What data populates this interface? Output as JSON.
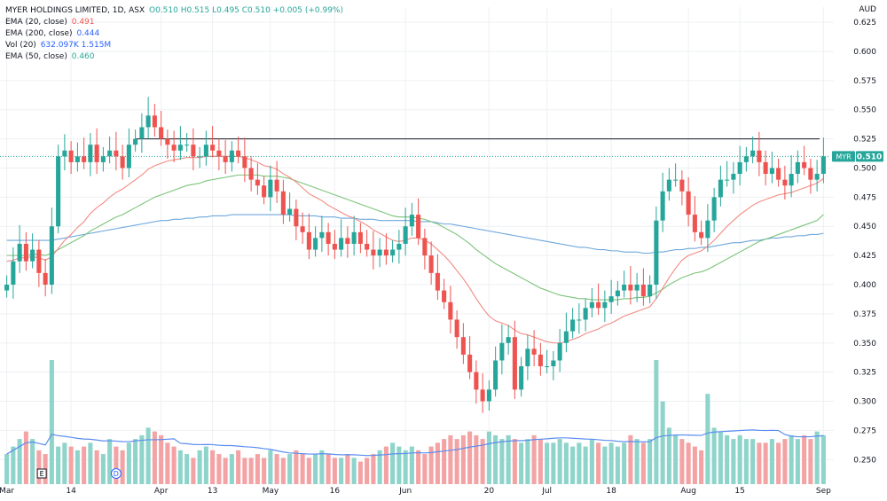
{
  "legend": {
    "symbol": "MYER HOLDINGS LIMITED, 1D, ASX",
    "ohlc": "O0.510 H0.515 L0.495 C0.510 +0.005 (+0.99%)",
    "ema20_label": "EMA (20, close)",
    "ema20_value": "0.491",
    "ema200_label": "EMA (200, close)",
    "ema200_value": "0.444",
    "vol_label": "Vol (20)",
    "vol_value": "632.097K 1.515M",
    "ema50_label": "EMA (50, close)",
    "ema50_value": "0.460"
  },
  "currency": "AUD",
  "price_tag": {
    "symbol": "MYR",
    "value": "0.510"
  },
  "markers": {
    "earnings": "E",
    "dividend": "D"
  },
  "colors": {
    "up": "#26a69a",
    "down": "#ef5350",
    "up_vol": "#8fd4cb",
    "down_vol": "#f4a3a5",
    "ema20": "#f28b82",
    "ema50": "#7cc47a",
    "ema200": "#6fa8dc",
    "vol_ma": "#5b8def",
    "resistance": "#131722",
    "last_price": "#26a69a",
    "grid": "#eef0f3"
  },
  "chart_data": {
    "type": "candlestick",
    "title": "MYER HOLDINGS LIMITED, 1D, ASX",
    "y_axis": {
      "label": "AUD",
      "ticks": [
        "0.625",
        "0.600",
        "0.575",
        "0.550",
        "0.525",
        "0.500",
        "0.475",
        "0.450",
        "0.425",
        "0.400",
        "0.375",
        "0.350",
        "0.325",
        "0.300",
        "0.275",
        "0.250"
      ],
      "range": [
        0.235,
        0.638
      ]
    },
    "x_axis": {
      "ticks": [
        {
          "label": "Mar",
          "index": 0
        },
        {
          "label": "14",
          "index": 10
        },
        {
          "label": "Apr",
          "index": 24
        },
        {
          "label": "13",
          "index": 32
        },
        {
          "label": "May",
          "index": 41
        },
        {
          "label": "16",
          "index": 51
        },
        {
          "label": "Jun",
          "index": 62
        },
        {
          "label": "20",
          "index": 75
        },
        {
          "label": "Jul",
          "index": 84
        },
        {
          "label": "18",
          "index": 94
        },
        {
          "label": "Aug",
          "index": 106
        },
        {
          "label": "15",
          "index": 114
        },
        {
          "label": "Sep",
          "index": 127
        }
      ],
      "count": 128
    },
    "resistance_level": 0.525,
    "last_price": 0.51,
    "close": [
      0.4,
      0.42,
      0.435,
      0.42,
      0.43,
      0.41,
      0.4,
      0.45,
      0.51,
      0.515,
      0.505,
      0.51,
      0.505,
      0.52,
      0.505,
      0.51,
      0.515,
      0.51,
      0.5,
      0.52,
      0.525,
      0.535,
      0.545,
      0.535,
      0.525,
      0.52,
      0.515,
      0.52,
      0.52,
      0.51,
      0.51,
      0.52,
      0.515,
      0.51,
      0.505,
      0.515,
      0.51,
      0.5,
      0.49,
      0.485,
      0.475,
      0.49,
      0.48,
      0.46,
      0.465,
      0.45,
      0.445,
      0.43,
      0.44,
      0.445,
      0.435,
      0.43,
      0.44,
      0.435,
      0.445,
      0.435,
      0.43,
      0.425,
      0.43,
      0.425,
      0.43,
      0.435,
      0.45,
      0.46,
      0.44,
      0.425,
      0.41,
      0.395,
      0.385,
      0.37,
      0.355,
      0.34,
      0.325,
      0.31,
      0.3,
      0.31,
      0.335,
      0.35,
      0.355,
      0.31,
      0.33,
      0.345,
      0.34,
      0.33,
      0.33,
      0.335,
      0.35,
      0.36,
      0.37,
      0.37,
      0.38,
      0.385,
      0.38,
      0.385,
      0.39,
      0.395,
      0.4,
      0.395,
      0.4,
      0.39,
      0.4,
      0.455,
      0.48,
      0.49,
      0.49,
      0.48,
      0.46,
      0.445,
      0.44,
      0.455,
      0.475,
      0.49,
      0.49,
      0.495,
      0.505,
      0.51,
      0.515,
      0.505,
      0.495,
      0.5,
      0.49,
      0.485,
      0.495,
      0.505,
      0.5,
      0.49,
      0.495,
      0.51
    ],
    "volume": [
      8,
      10,
      12,
      14,
      12,
      9,
      8,
      33,
      10,
      11,
      10,
      9,
      10,
      11,
      9,
      8,
      12,
      10,
      9,
      11,
      12,
      13,
      15,
      14,
      13,
      11,
      10,
      9,
      8,
      7,
      9,
      10,
      9,
      8,
      7,
      8,
      9,
      7,
      7,
      8,
      7,
      9,
      8,
      7,
      8,
      9,
      8,
      7,
      8,
      9,
      8,
      7,
      7,
      8,
      7,
      6,
      7,
      8,
      9,
      10,
      11,
      10,
      9,
      10,
      9,
      8,
      10,
      11,
      12,
      13,
      12,
      13,
      14,
      13,
      12,
      14,
      13,
      12,
      13,
      12,
      11,
      12,
      13,
      12,
      11,
      11,
      12,
      11,
      10,
      11,
      10,
      12,
      11,
      10,
      11,
      10,
      11,
      13,
      12,
      11,
      12,
      33,
      22,
      15,
      13,
      12,
      11,
      10,
      9,
      24,
      15,
      14,
      13,
      12,
      13,
      12,
      12,
      11,
      11,
      12,
      11,
      12,
      13,
      12,
      13,
      12,
      14,
      13
    ],
    "ema20": [
      0.42,
      0.421,
      0.423,
      0.423,
      0.424,
      0.423,
      0.421,
      0.424,
      0.431,
      0.438,
      0.443,
      0.449,
      0.454,
      0.461,
      0.466,
      0.47,
      0.475,
      0.479,
      0.482,
      0.486,
      0.49,
      0.494,
      0.499,
      0.502,
      0.504,
      0.506,
      0.507,
      0.508,
      0.509,
      0.509,
      0.509,
      0.51,
      0.51,
      0.51,
      0.51,
      0.51,
      0.51,
      0.509,
      0.507,
      0.505,
      0.502,
      0.501,
      0.499,
      0.495,
      0.492,
      0.488,
      0.483,
      0.478,
      0.475,
      0.472,
      0.468,
      0.465,
      0.462,
      0.459,
      0.457,
      0.454,
      0.451,
      0.447,
      0.444,
      0.441,
      0.438,
      0.437,
      0.438,
      0.44,
      0.44,
      0.438,
      0.435,
      0.43,
      0.425,
      0.419,
      0.412,
      0.405,
      0.397,
      0.388,
      0.38,
      0.373,
      0.369,
      0.367,
      0.365,
      0.361,
      0.358,
      0.357,
      0.355,
      0.353,
      0.351,
      0.35,
      0.35,
      0.351,
      0.353,
      0.355,
      0.358,
      0.36,
      0.362,
      0.365,
      0.367,
      0.37,
      0.373,
      0.375,
      0.377,
      0.379,
      0.381,
      0.388,
      0.397,
      0.406,
      0.414,
      0.421,
      0.425,
      0.427,
      0.429,
      0.433,
      0.438,
      0.444,
      0.45,
      0.455,
      0.46,
      0.464,
      0.468,
      0.471,
      0.473,
      0.475,
      0.477,
      0.478,
      0.479,
      0.481,
      0.483,
      0.485,
      0.487,
      0.491
    ],
    "ema50": [
      0.425,
      0.425,
      0.425,
      0.425,
      0.426,
      0.426,
      0.425,
      0.427,
      0.43,
      0.433,
      0.436,
      0.439,
      0.442,
      0.446,
      0.449,
      0.452,
      0.455,
      0.458,
      0.46,
      0.463,
      0.466,
      0.469,
      0.472,
      0.475,
      0.477,
      0.479,
      0.481,
      0.483,
      0.485,
      0.486,
      0.487,
      0.489,
      0.49,
      0.491,
      0.492,
      0.493,
      0.494,
      0.494,
      0.494,
      0.494,
      0.493,
      0.493,
      0.493,
      0.492,
      0.491,
      0.489,
      0.487,
      0.485,
      0.483,
      0.481,
      0.479,
      0.477,
      0.475,
      0.473,
      0.471,
      0.469,
      0.467,
      0.465,
      0.463,
      0.461,
      0.459,
      0.458,
      0.458,
      0.458,
      0.457,
      0.456,
      0.454,
      0.452,
      0.449,
      0.446,
      0.443,
      0.439,
      0.435,
      0.43,
      0.426,
      0.422,
      0.418,
      0.415,
      0.412,
      0.409,
      0.406,
      0.403,
      0.4,
      0.397,
      0.395,
      0.393,
      0.391,
      0.39,
      0.389,
      0.388,
      0.388,
      0.387,
      0.387,
      0.387,
      0.387,
      0.387,
      0.388,
      0.388,
      0.389,
      0.389,
      0.39,
      0.393,
      0.396,
      0.4,
      0.403,
      0.406,
      0.408,
      0.41,
      0.411,
      0.413,
      0.416,
      0.419,
      0.422,
      0.425,
      0.428,
      0.431,
      0.434,
      0.437,
      0.439,
      0.441,
      0.443,
      0.445,
      0.447,
      0.449,
      0.451,
      0.453,
      0.455,
      0.46
    ],
    "ema200": [
      0.438,
      0.438,
      0.438,
      0.438,
      0.438,
      0.438,
      0.438,
      0.438,
      0.439,
      0.44,
      0.441,
      0.442,
      0.443,
      0.444,
      0.445,
      0.446,
      0.447,
      0.448,
      0.449,
      0.45,
      0.451,
      0.452,
      0.453,
      0.454,
      0.455,
      0.455,
      0.456,
      0.456,
      0.457,
      0.457,
      0.458,
      0.458,
      0.459,
      0.459,
      0.459,
      0.46,
      0.46,
      0.46,
      0.46,
      0.46,
      0.46,
      0.46,
      0.46,
      0.46,
      0.46,
      0.459,
      0.459,
      0.459,
      0.459,
      0.458,
      0.458,
      0.458,
      0.457,
      0.457,
      0.457,
      0.456,
      0.456,
      0.456,
      0.455,
      0.455,
      0.455,
      0.455,
      0.455,
      0.455,
      0.454,
      0.454,
      0.454,
      0.453,
      0.452,
      0.452,
      0.451,
      0.45,
      0.449,
      0.448,
      0.447,
      0.446,
      0.445,
      0.444,
      0.443,
      0.442,
      0.441,
      0.44,
      0.439,
      0.438,
      0.437,
      0.436,
      0.435,
      0.434,
      0.433,
      0.432,
      0.432,
      0.431,
      0.43,
      0.43,
      0.429,
      0.429,
      0.428,
      0.428,
      0.428,
      0.427,
      0.427,
      0.428,
      0.428,
      0.429,
      0.43,
      0.43,
      0.431,
      0.431,
      0.432,
      0.432,
      0.433,
      0.434,
      0.435,
      0.436,
      0.436,
      0.437,
      0.438,
      0.438,
      0.439,
      0.44,
      0.44,
      0.441,
      0.441,
      0.442,
      0.442,
      0.443,
      0.443,
      0.444
    ]
  }
}
